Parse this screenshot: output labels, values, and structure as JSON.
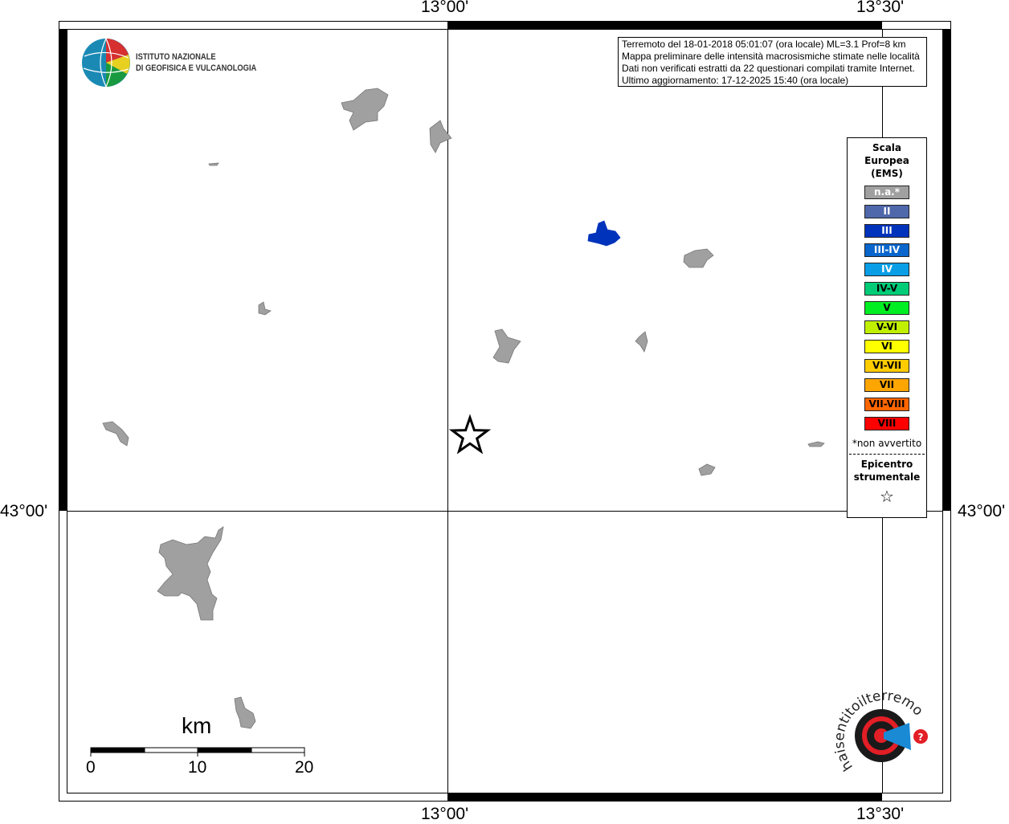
{
  "map": {
    "ticks": {
      "top": [
        "13°00'",
        "13°30'"
      ],
      "bottom": [
        "13°00'",
        "13°30'"
      ],
      "left": [
        "43°00'"
      ],
      "right": [
        "43°00'"
      ]
    },
    "info_lines": [
      "Terremoto del 18-01-2018 05:01:07 (ora locale) ML=3.1 Prof=8 km",
      "Mappa preliminare delle intensità macrosismiche stimate nelle località",
      "Dati non verificati estratti da 22 questionari compilati tramite Internet.",
      "Ultimo aggiornamento: 17-12-2025 15:40 (ora locale)"
    ],
    "logo_ingv": [
      "ISTITUTO NAZIONALE",
      "DI GEOFISICA E VULCANOLOGIA"
    ],
    "logo_hsit": "www.haisentitoilterremoto.it",
    "scalebar": {
      "unit": "km",
      "labels": [
        "0",
        "10",
        "20"
      ]
    },
    "localities": [
      {
        "intensity": "n.a.",
        "color": "#a0a0a0"
      },
      {
        "intensity": "III",
        "color": "#0033bb"
      }
    ]
  },
  "legend": {
    "title": [
      "Scala",
      "Europea",
      "(EMS)"
    ],
    "items": [
      {
        "label": "n.a.*",
        "color": "#a0a0a0",
        "text": "#ffffff"
      },
      {
        "label": "II",
        "color": "#4f68ab",
        "text": "#ffffff"
      },
      {
        "label": "III",
        "color": "#0033bb",
        "text": "#ffffff"
      },
      {
        "label": "III-IV",
        "color": "#0a66cc",
        "text": "#ffffff"
      },
      {
        "label": "IV",
        "color": "#0a9ee6",
        "text": "#ffffff"
      },
      {
        "label": "IV-V",
        "color": "#00cc77",
        "text": "#000000"
      },
      {
        "label": "V",
        "color": "#00ee22",
        "text": "#000000"
      },
      {
        "label": "V-VI",
        "color": "#c0f000",
        "text": "#000000"
      },
      {
        "label": "VI",
        "color": "#ffff00",
        "text": "#000000"
      },
      {
        "label": "VI-VII",
        "color": "#ffcc00",
        "text": "#000000"
      },
      {
        "label": "VII",
        "color": "#ffa500",
        "text": "#000000"
      },
      {
        "label": "VII-VIII",
        "color": "#ff6600",
        "text": "#000000"
      },
      {
        "label": "VIII",
        "color": "#ff0000",
        "text": "#000000"
      }
    ],
    "note": "*non avvertito",
    "epicenter_title": [
      "Epicentro",
      "strumentale"
    ]
  }
}
